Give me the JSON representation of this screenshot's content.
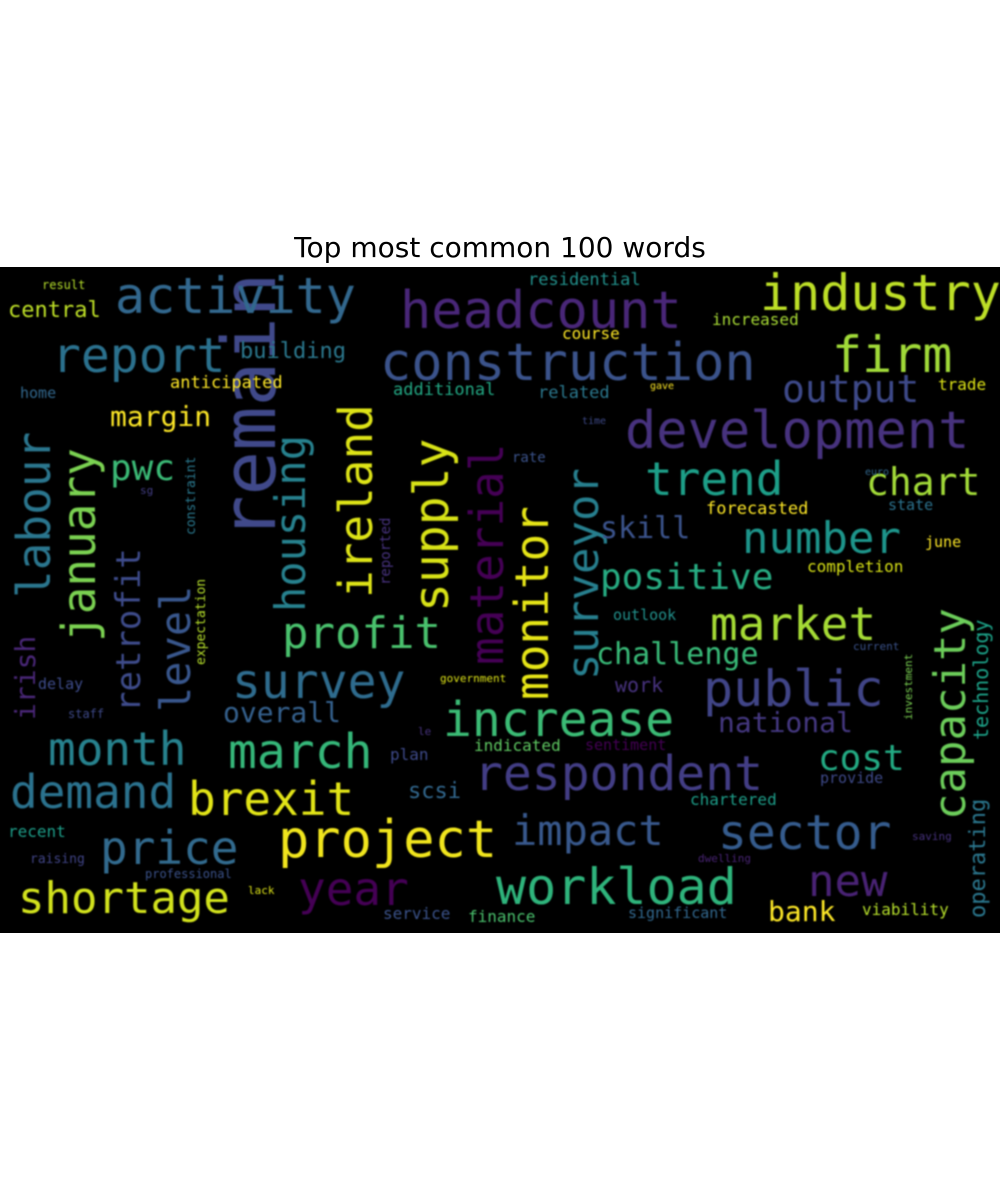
{
  "chart_data": {
    "type": "wordcloud",
    "title": "Top most common 100 words",
    "words": [
      {
        "text": "remain",
        "c": "#3f4a8a"
      },
      {
        "text": "construction",
        "c": "#3b528b"
      },
      {
        "text": "headcount",
        "c": "#482878"
      },
      {
        "text": "development",
        "c": "#46337e"
      },
      {
        "text": "activity",
        "c": "#31688e"
      },
      {
        "text": "industry",
        "c": "#bddf26"
      },
      {
        "text": "report",
        "c": "#2c718e"
      },
      {
        "text": "firm",
        "c": "#a0da39"
      },
      {
        "text": "respondent",
        "c": "#433e85"
      },
      {
        "text": "increase",
        "c": "#3bbb75"
      },
      {
        "text": "project",
        "c": "#f1e51d"
      },
      {
        "text": "workload",
        "c": "#2fb47c"
      },
      {
        "text": "survey",
        "c": "#2f6c8e"
      },
      {
        "text": "public",
        "c": "#414487"
      },
      {
        "text": "sector",
        "c": "#365c8d"
      },
      {
        "text": "ireland",
        "c": "#dde318"
      },
      {
        "text": "supply",
        "c": "#d8e219"
      },
      {
        "text": "housing",
        "c": "#26818e"
      },
      {
        "text": "monitor",
        "c": "#e5e419"
      },
      {
        "text": "surveyor",
        "c": "#277f8e"
      },
      {
        "text": "material",
        "c": "#440154"
      },
      {
        "text": "labour",
        "c": "#2a768e"
      },
      {
        "text": "january",
        "c": "#7ad151"
      },
      {
        "text": "capacity",
        "c": "#6ccd5a"
      },
      {
        "text": "month",
        "c": "#26828e"
      },
      {
        "text": "march",
        "c": "#35b779"
      },
      {
        "text": "demand",
        "c": "#2c728e"
      },
      {
        "text": "brexit",
        "c": "#e2e418"
      },
      {
        "text": "price",
        "c": "#306a8e"
      },
      {
        "text": "year",
        "c": "#440154"
      },
      {
        "text": "shortage",
        "c": "#d2e21b"
      },
      {
        "text": "market",
        "c": "#a5db36"
      },
      {
        "text": "profit",
        "c": "#4ac16d"
      },
      {
        "text": "trend",
        "c": "#1f9f88"
      },
      {
        "text": "number",
        "c": "#1f958b"
      },
      {
        "text": "impact",
        "c": "#38588c"
      },
      {
        "text": "level",
        "c": "#39568c"
      },
      {
        "text": "output",
        "c": "#3e4989"
      },
      {
        "text": "chart",
        "c": "#a2da37"
      },
      {
        "text": "new",
        "c": "#482475"
      },
      {
        "text": "positive",
        "c": "#25ac82"
      },
      {
        "text": "cost",
        "c": "#24aa83"
      },
      {
        "text": "retrofit",
        "c": "#3e4c8a"
      },
      {
        "text": "margin",
        "c": "#fde725"
      },
      {
        "text": "pwc",
        "c": "#3aba76"
      },
      {
        "text": "challenge",
        "c": "#38b977"
      },
      {
        "text": "overall",
        "c": "#34618d"
      },
      {
        "text": "national",
        "c": "#453781"
      },
      {
        "text": "bank",
        "c": "#fde725"
      },
      {
        "text": "skill",
        "c": "#3b528b"
      },
      {
        "text": "operating",
        "c": "#2a778e"
      },
      {
        "text": "technology",
        "c": "#1fa187"
      },
      {
        "text": "building",
        "c": "#2a788e"
      },
      {
        "text": "irish",
        "c": "#482677"
      },
      {
        "text": "central",
        "c": "#bddf26"
      },
      {
        "text": "scsi",
        "c": "#31688e"
      },
      {
        "text": "anticipated",
        "c": "#fde725"
      },
      {
        "text": "additional",
        "c": "#22a884"
      },
      {
        "text": "related",
        "c": "#2a788e"
      },
      {
        "text": "forecasted",
        "c": "#fde725"
      },
      {
        "text": "completion",
        "c": "#d8e219"
      },
      {
        "text": "indicated",
        "c": "#5ec962"
      },
      {
        "text": "chartered",
        "c": "#1f9e89"
      },
      {
        "text": "viability",
        "c": "#b5de2b"
      },
      {
        "text": "service",
        "c": "#3b528b"
      },
      {
        "text": "finance",
        "c": "#4ac16d"
      },
      {
        "text": "significant",
        "c": "#31688e"
      },
      {
        "text": "work",
        "c": "#46327e"
      },
      {
        "text": "residential",
        "c": "#21918c"
      },
      {
        "text": "course",
        "c": "#fde725"
      },
      {
        "text": "increased",
        "c": "#a8db34"
      },
      {
        "text": "trade",
        "c": "#dde318"
      },
      {
        "text": "state",
        "c": "#2c728e"
      },
      {
        "text": "june",
        "c": "#fde725"
      },
      {
        "text": "outlook",
        "c": "#21918c"
      },
      {
        "text": "provide",
        "c": "#3e4a89"
      },
      {
        "text": "recent",
        "c": "#1f9e89"
      },
      {
        "text": "raising",
        "c": "#414487"
      },
      {
        "text": "professional",
        "c": "#3b528b"
      },
      {
        "text": "home",
        "c": "#31688e"
      },
      {
        "text": "result",
        "c": "#b5de2b"
      },
      {
        "text": "delay",
        "c": "#3e4c8a"
      },
      {
        "text": "staff",
        "c": "#3e4a89"
      },
      {
        "text": "expectation",
        "c": "#b5de2b"
      },
      {
        "text": "constraint",
        "c": "#2a788e"
      },
      {
        "text": "reported",
        "c": "#46327e"
      },
      {
        "text": "rate",
        "c": "#3b528b"
      },
      {
        "text": "plan",
        "c": "#3e4a89"
      },
      {
        "text": "sentiment",
        "c": "#440154"
      },
      {
        "text": "government",
        "c": "#dde318"
      },
      {
        "text": "current",
        "c": "#3b528b"
      },
      {
        "text": "dwelling",
        "c": "#482475"
      },
      {
        "text": "lack",
        "c": "#dde318"
      },
      {
        "text": "time",
        "c": "#3e4a89"
      },
      {
        "text": "sg",
        "c": "#433e85"
      },
      {
        "text": "le",
        "c": "#46327e"
      },
      {
        "text": "investment",
        "c": "#7ad151"
      },
      {
        "text": "saving",
        "c": "#46327e"
      },
      {
        "text": "gave",
        "c": "#fde725"
      },
      {
        "text": "euro",
        "c": "#31688e"
      }
    ]
  }
}
